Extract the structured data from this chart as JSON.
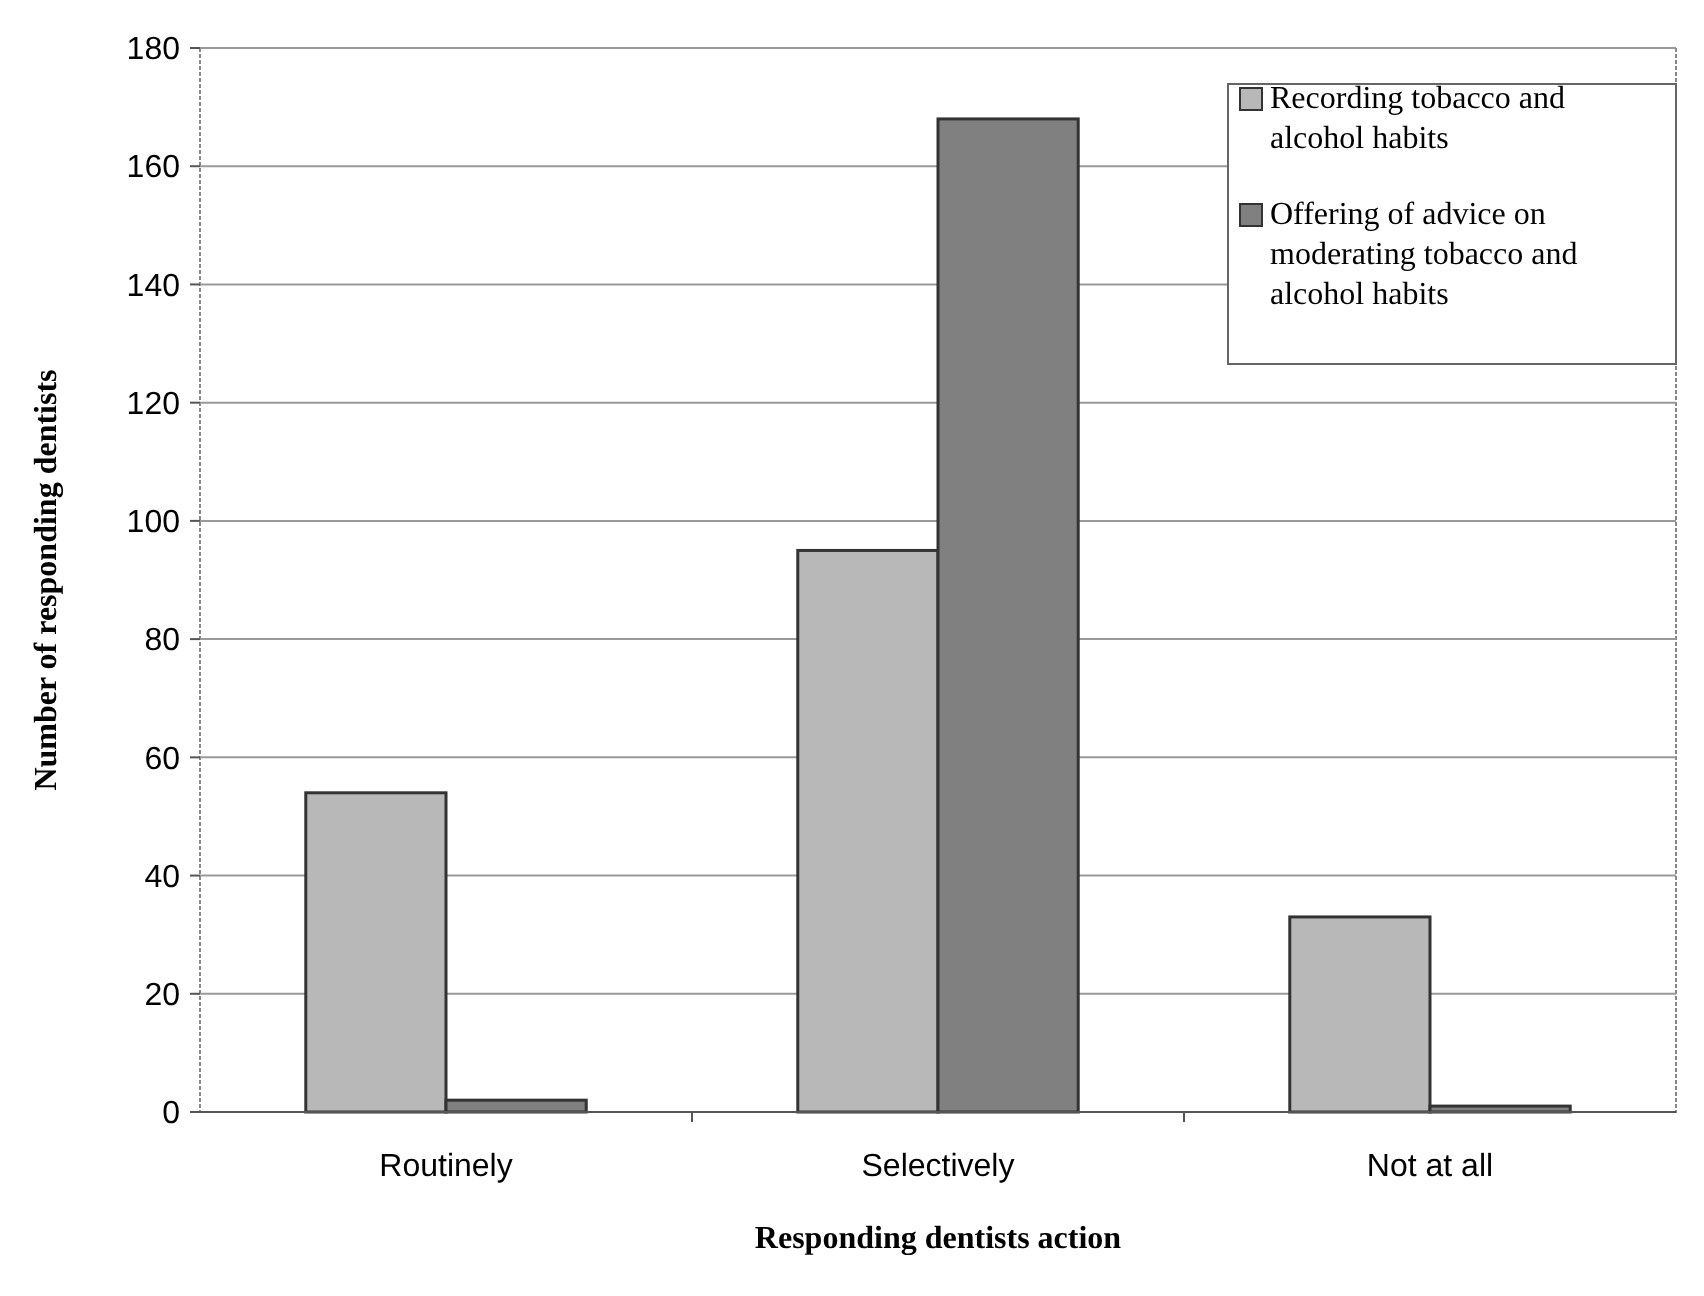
{
  "chart_data": {
    "type": "bar",
    "xlabel": "Responding dentists action",
    "ylabel": "Number of responding dentists",
    "categories": [
      "Routinely",
      "Selectively",
      "Not at all"
    ],
    "series": [
      {
        "name": "Recording tobacco and alcohol habits",
        "color": "#b8b8b8",
        "values": [
          54,
          95,
          33
        ]
      },
      {
        "name": "Offering of advice on moderating tobacco and alcohol habits",
        "color": "#808080",
        "values": [
          2,
          168,
          1
        ]
      }
    ],
    "ylim": [
      0,
      180
    ],
    "yticks": [
      0,
      20,
      40,
      60,
      80,
      100,
      120,
      140,
      160,
      180
    ],
    "grid": "y",
    "legend": "top right"
  }
}
